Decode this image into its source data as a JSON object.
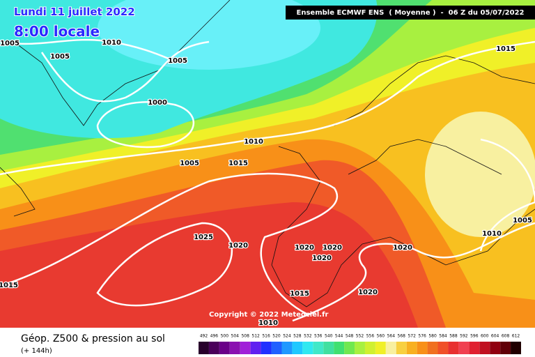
{
  "header": {
    "date": "Lundi 11 juillet 2022",
    "time": "8:00 locale",
    "model": "Ensemble ECMWF ENS  ( Moyenne )  -  06 Z du 05/07/2022"
  },
  "map": {
    "isobar_labels": [
      1005,
      1005,
      1010,
      1005,
      1000,
      1010,
      1005,
      1015,
      1015,
      1025,
      1020,
      1020,
      1020,
      1020,
      1020,
      1010,
      1005,
      1015,
      1015,
      1020,
      1010
    ],
    "copyright": "Copyright © 2022 Meteociel.fr"
  },
  "footer": {
    "title": "Géop. Z500 & pression au sol",
    "lead": "(+ 144h)"
  },
  "scale": {
    "values": [
      492,
      496,
      500,
      504,
      508,
      512,
      516,
      520,
      524,
      528,
      532,
      536,
      540,
      544,
      548,
      552,
      556,
      560,
      564,
      568,
      572,
      576,
      580,
      584,
      588,
      592,
      596,
      600,
      604,
      608,
      612
    ],
    "colors": [
      "#28002c",
      "#4a005a",
      "#6a0088",
      "#8a10b0",
      "#a020d8",
      "#6020f0",
      "#2030ff",
      "#2060ff",
      "#2098ff",
      "#20c8ff",
      "#30e8f0",
      "#40e8c8",
      "#40e0a0",
      "#40e070",
      "#70e850",
      "#a8f040",
      "#d0f030",
      "#f0f028",
      "#f8f0a0",
      "#f8d040",
      "#f8b020",
      "#f89018",
      "#f07020",
      "#f05028",
      "#e83030",
      "#f04050",
      "#e02030",
      "#c01020",
      "#900010",
      "#600008",
      "#200000"
    ]
  }
}
